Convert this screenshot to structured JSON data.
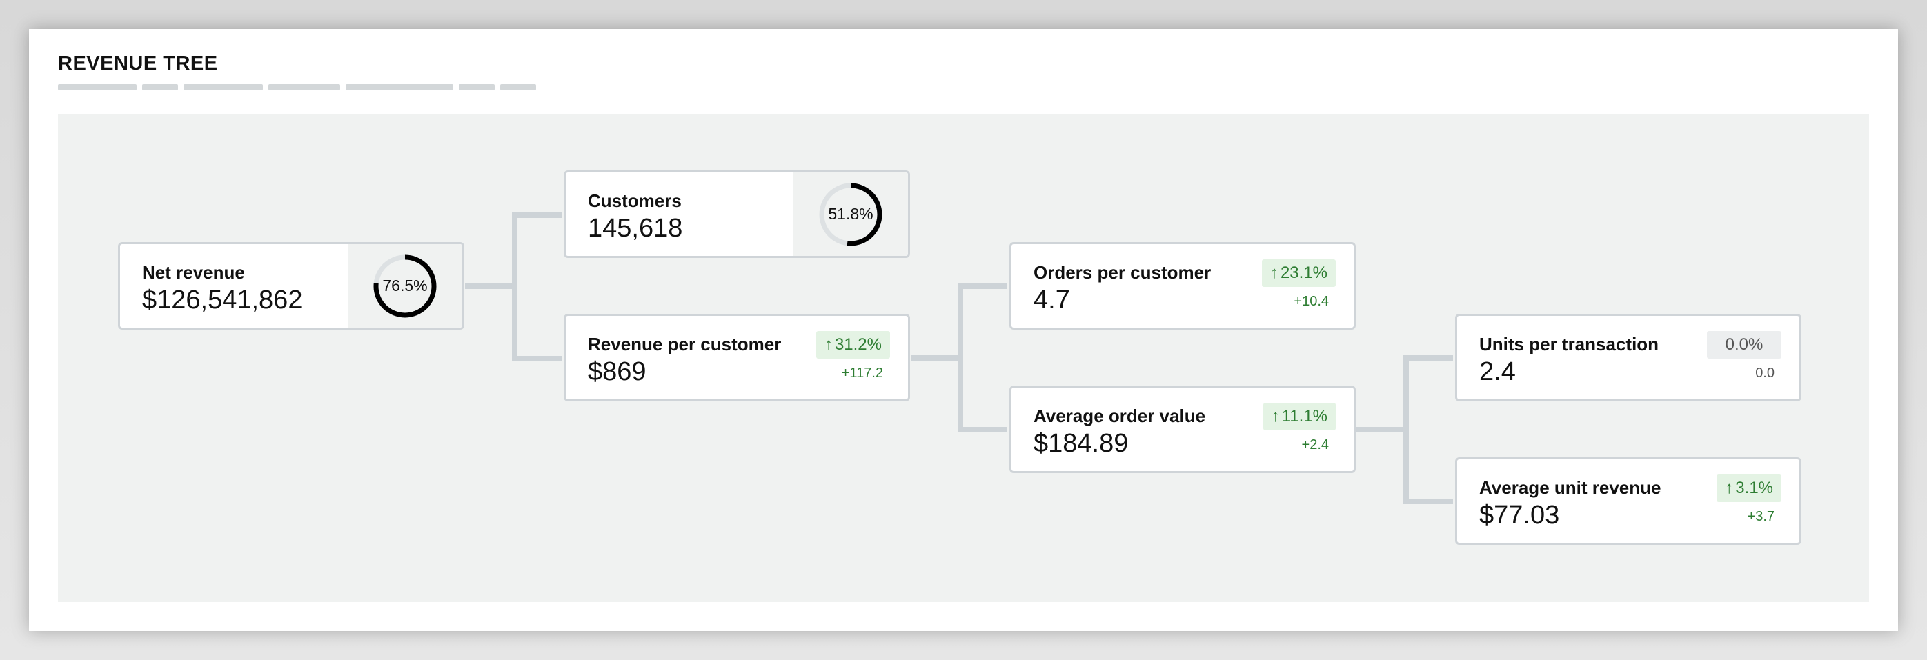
{
  "page": {
    "title": "REVENUE TREE"
  },
  "colors": {
    "positive": "#2e7d32",
    "positive_bg": "#e4f3e4",
    "neutral_bg": "#eceeef",
    "connector": "#cdd3d7",
    "panel": "#f0f2f1"
  },
  "nodes": {
    "net_revenue": {
      "label": "Net revenue",
      "value": "$126,541,862",
      "ring_text": "76.5%",
      "ring_fraction": 0.765
    },
    "customers": {
      "label": "Customers",
      "value": "145,618",
      "ring_text": "51.8%",
      "ring_fraction": 0.518
    },
    "revenue_per_customer": {
      "label": "Revenue per customer",
      "value": "$869",
      "change_pct": "31.2%",
      "change_abs": "+117.2",
      "trend": "up"
    },
    "orders_per_customer": {
      "label": "Orders per customer",
      "value": "4.7",
      "change_pct": "23.1%",
      "change_abs": "+10.4",
      "trend": "up"
    },
    "average_order_value": {
      "label": "Average order value",
      "value": "$184.89",
      "change_pct": "11.1%",
      "change_abs": "+2.4",
      "trend": "up"
    },
    "units_per_transaction": {
      "label": "Units per transaction",
      "value": "2.4",
      "change_pct": "0.0%",
      "change_abs": "0.0",
      "trend": "flat"
    },
    "average_unit_revenue": {
      "label": "Average unit revenue",
      "value": "$77.03",
      "change_pct": "3.1%",
      "change_abs": "+3.7",
      "trend": "up"
    }
  },
  "icons": {
    "trend_up": "arrow-up-icon"
  }
}
